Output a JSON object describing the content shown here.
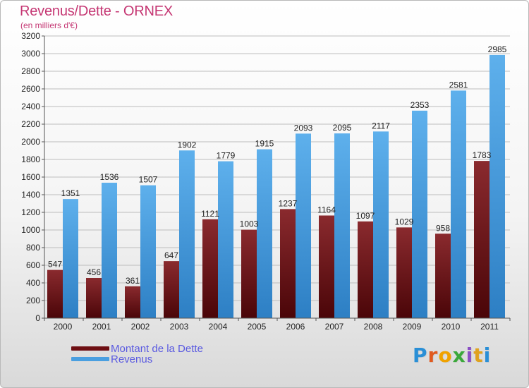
{
  "title": "Revenus/Dette - ORNEX",
  "subtitle": "(en milliers d'€)",
  "colors": {
    "title": "#c53773",
    "dette": "#6e0f13",
    "revenus": "#4a9fe0",
    "legend_text": "#5a5ae0"
  },
  "logo": {
    "text": "Proxiti",
    "letter_colors": [
      "#2a8fd6",
      "#e05a1f",
      "#f0a200",
      "#3aa83a",
      "#8a4fc4",
      "#e0a21f",
      "#2a8fd6"
    ]
  },
  "chart_data": {
    "type": "bar",
    "title": "Revenus/Dette - ORNEX",
    "subtitle": "(en milliers d'€)",
    "categories": [
      "2000",
      "2001",
      "2002",
      "2003",
      "2004",
      "2005",
      "2006",
      "2007",
      "2008",
      "2009",
      "2010",
      "2011"
    ],
    "series": [
      {
        "name": "Montant de la Dette",
        "color": "#6e0f13",
        "values": [
          547,
          456,
          361,
          647,
          1121,
          1003,
          1237,
          1164,
          1097,
          1029,
          958,
          1783
        ],
        "labels": [
          "547",
          "456",
          "361",
          "647",
          "1121",
          "1003",
          "1237",
          "1164",
          "1097",
          "1029",
          "958",
          "1783"
        ]
      },
      {
        "name": "Revenus",
        "color": "#4a9fe0",
        "values": [
          1351,
          1536,
          1507,
          1902,
          1779,
          1915,
          2093,
          2095,
          2117,
          2353,
          2581,
          2985
        ],
        "labels": [
          "1351",
          "1536",
          "1507",
          "1902",
          "1779",
          "1915",
          "2093",
          "2095",
          "2117",
          "2353",
          "2581",
          "2985"
        ]
      }
    ],
    "yticks": [
      0,
      200,
      400,
      600,
      800,
      1000,
      1200,
      1400,
      1600,
      1800,
      2000,
      2200,
      2400,
      2600,
      2800,
      3000,
      3200
    ],
    "ylim": [
      0,
      3200
    ],
    "grid": true,
    "legend": "bottom-left"
  }
}
